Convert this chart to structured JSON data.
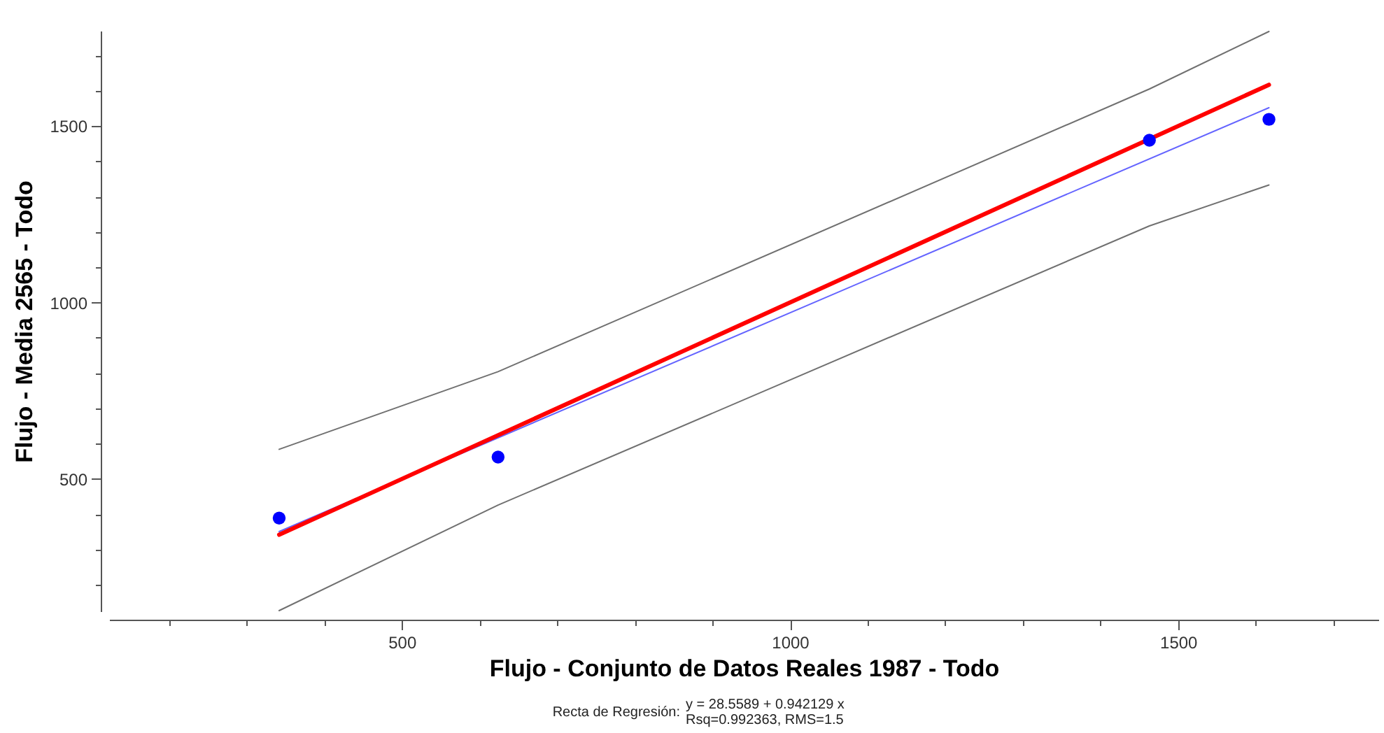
{
  "chart_data": {
    "type": "scatter",
    "xlabel": "Flujo - Conjunto de Datos Reales 1987 - Todo",
    "ylabel": "Flujo - Media 2565 - Todo",
    "annotations": [
      "Recta de Regresión:",
      "y = 28.5589 + 0.942129 x",
      "Rsq=0.992363, RMS=1.5"
    ],
    "xlim": [
      123,
      1758
    ],
    "ylim": [
      125,
      1770
    ],
    "xticks": [
      {
        "value": 200,
        "label": null
      },
      {
        "value": 300,
        "label": null
      },
      {
        "value": 400,
        "label": null
      },
      500,
      {
        "value": 600,
        "label": null
      },
      {
        "value": 700,
        "label": null
      },
      {
        "value": 800,
        "label": null
      },
      {
        "value": 900,
        "label": null
      },
      1000,
      {
        "value": 1100,
        "label": null
      },
      {
        "value": 1200,
        "label": null
      },
      {
        "value": 1300,
        "label": null
      },
      {
        "value": 1400,
        "label": null
      },
      1500,
      {
        "value": 1600,
        "label": null
      },
      {
        "value": 1700,
        "label": null
      }
    ],
    "yticks": [
      {
        "value": 200,
        "label": null
      },
      {
        "value": 300,
        "label": null
      },
      {
        "value": 400,
        "label": null
      },
      500,
      {
        "value": 600,
        "label": null
      },
      {
        "value": 700,
        "label": null
      },
      {
        "value": 800,
        "label": null
      },
      {
        "value": 900,
        "label": null
      },
      1000,
      {
        "value": 1100,
        "label": null
      },
      {
        "value": 1200,
        "label": null
      },
      {
        "value": 1300,
        "label": null
      },
      {
        "value": 1400,
        "label": null
      },
      1500,
      {
        "value": 1600,
        "label": null
      },
      {
        "value": 1700,
        "label": null
      }
    ],
    "series": [
      {
        "type": "line",
        "color": "#707070",
        "x": [
          342,
          624,
          1463,
          1617
        ],
        "values": [
          584,
          804,
          1605,
          1768
        ]
      },
      {
        "type": "line",
        "color": "#707070",
        "x": [
          342,
          624,
          1463,
          1617
        ],
        "values": [
          127,
          426,
          1217,
          1333
        ]
      },
      {
        "type": "line",
        "color": "#6464ff",
        "x": [
          342,
          1617
        ],
        "values": [
          351,
          1552
        ]
      },
      {
        "type": "line",
        "color": "#ff0000",
        "x": [
          342,
          1617
        ],
        "values": [
          342,
          1617
        ]
      },
      {
        "color": "#0000ff",
        "marker": "circle",
        "x": [
          342,
          624,
          1463,
          1617
        ],
        "values": [
          389,
          562,
          1460,
          1519
        ]
      }
    ]
  }
}
